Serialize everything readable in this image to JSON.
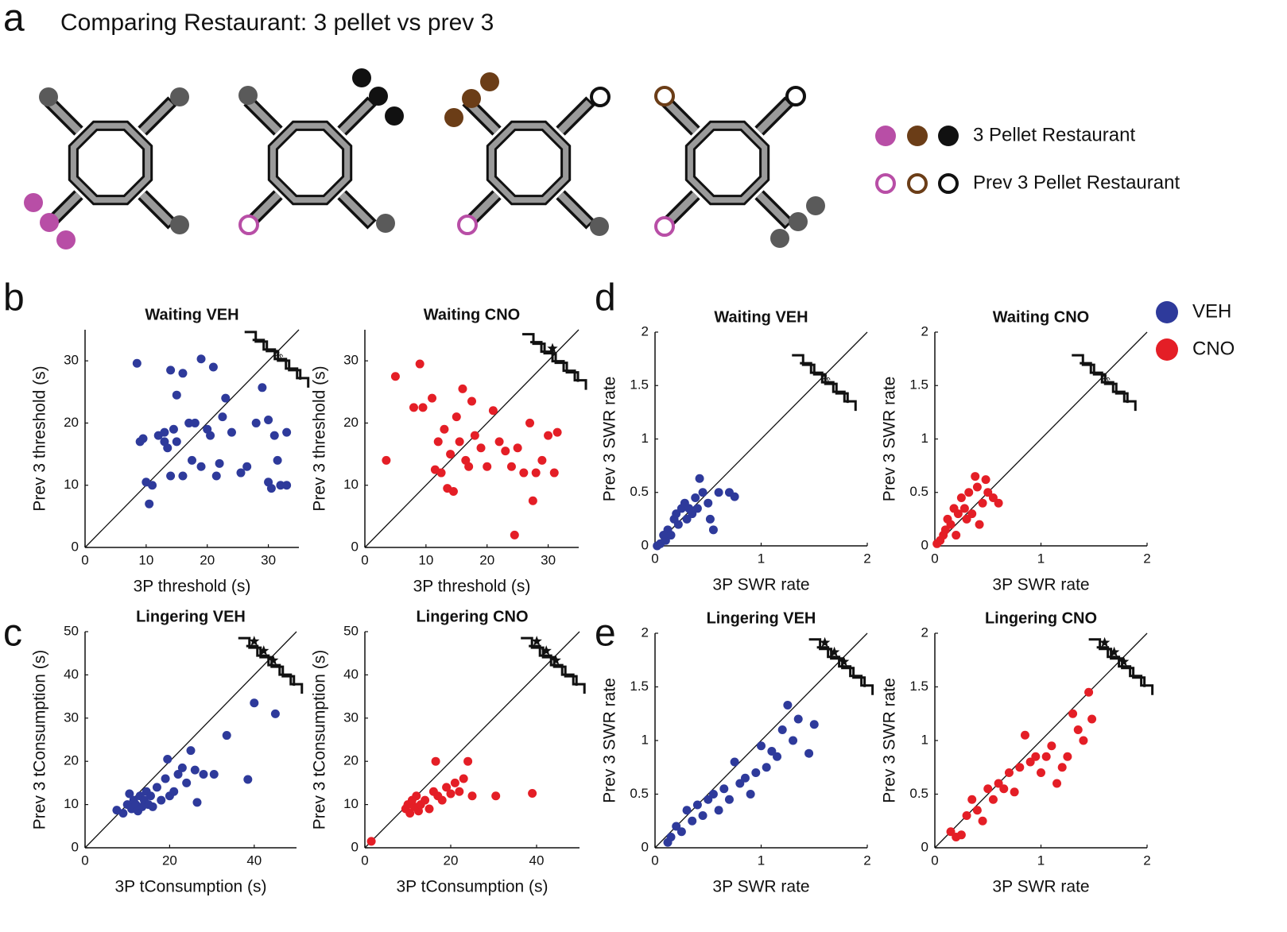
{
  "figure": {
    "title": "Comparing Restaurant: 3 pellet vs prev 3",
    "panel_labels": [
      "a",
      "b",
      "c",
      "d",
      "e"
    ],
    "restaurant_legend": [
      "3 Pellet Restaurant",
      "Prev 3 Pellet Restaurant"
    ],
    "legend": [
      {
        "name": "VEH",
        "color": "#2e3a9b"
      },
      {
        "name": "CNO",
        "color": "#e41e26"
      }
    ]
  },
  "chart_data": [
    {
      "type": "scatter",
      "title": "Waiting VEH",
      "xlabel": "3P threshold (s)",
      "ylabel": "Prev 3 threshold (s)",
      "xlim": [
        0,
        35
      ],
      "ylim": [
        0,
        35
      ],
      "xticks": [
        0,
        10,
        20,
        30
      ],
      "yticks": [
        0,
        10,
        20,
        30
      ],
      "annotation": "ns",
      "x": [
        8.5,
        9,
        9.5,
        10,
        10.5,
        11,
        12,
        13,
        13,
        13.5,
        14,
        14,
        14.5,
        15,
        15,
        16,
        16,
        17,
        17.5,
        18,
        19,
        19,
        20,
        20.5,
        21,
        21.5,
        22,
        22.5,
        23,
        24,
        25.5,
        26.5,
        28,
        29,
        30,
        30,
        30.5,
        31,
        31.5,
        32,
        33,
        33
      ],
      "series": [
        {
          "color": "#2e3a9b",
          "values": [
            29.6,
            17,
            17.5,
            10.5,
            7,
            10,
            18,
            18.5,
            17,
            16,
            28.5,
            11.5,
            19,
            17,
            24.5,
            28,
            11.5,
            20,
            14,
            20,
            30.3,
            13,
            19,
            18,
            29,
            11.5,
            13.5,
            21,
            24,
            18.5,
            12,
            13,
            20,
            25.7,
            20.5,
            10.5,
            9.5,
            18,
            14,
            10,
            18.5,
            10
          ]
        }
      ]
    },
    {
      "type": "scatter",
      "title": "Waiting CNO",
      "xlabel": "3P threshold (s)",
      "ylabel": "Prev 3 threshold (s)",
      "xlim": [
        0,
        35
      ],
      "ylim": [
        0,
        35
      ],
      "xticks": [
        0,
        10,
        20,
        30
      ],
      "yticks": [
        0,
        10,
        20,
        30
      ],
      "x": [
        3.5,
        5,
        8,
        9,
        9.5,
        11,
        11.5,
        12,
        12.5,
        13,
        13.5,
        14,
        14.5,
        15,
        15.5,
        16,
        16.5,
        17,
        17.5,
        18,
        19,
        20,
        21,
        22,
        23,
        24,
        24.5,
        25,
        26,
        27,
        27.5,
        28,
        29,
        30,
        31,
        31.5
      ],
      "series": [
        {
          "color": "#e41e26",
          "values": [
            14,
            27.5,
            22.5,
            29.5,
            22.5,
            24,
            12.5,
            17,
            12,
            19,
            9.5,
            15,
            9,
            21,
            17,
            25.5,
            14,
            13,
            23.5,
            18,
            16,
            13,
            22,
            17,
            15.5,
            13,
            2,
            16,
            12,
            20,
            7.5,
            12,
            14,
            18,
            12,
            18.5
          ]
        }
      ]
    },
    {
      "type": "scatter",
      "title": "Lingering VEH",
      "xlabel": "3P tConsumption (s)",
      "ylabel": "Prev 3 tConsumption (s)",
      "xlim": [
        0,
        50
      ],
      "ylim": [
        0,
        50
      ],
      "xticks": [
        0,
        20,
        40
      ],
      "yticks": [
        0,
        10,
        20,
        30,
        40,
        50
      ],
      "x": [
        7.5,
        9,
        10,
        10.5,
        11,
        11.5,
        12,
        12.5,
        13,
        13.5,
        14,
        14.5,
        15,
        15.5,
        16,
        17,
        18,
        19,
        19.5,
        20,
        21,
        22,
        23,
        24,
        25,
        26,
        26.5,
        28,
        30.5,
        33.5,
        38.5,
        40,
        45
      ],
      "series": [
        {
          "color": "#2e3a9b",
          "values": [
            8.7,
            8,
            10,
            12.5,
            9,
            11,
            10,
            8.5,
            12,
            9.5,
            11,
            13,
            10,
            12,
            9.5,
            14,
            11,
            16,
            20.5,
            12,
            13,
            17,
            18.5,
            15,
            22.5,
            18,
            10.5,
            17,
            17,
            26,
            15.8,
            33.5,
            31
          ]
        }
      ]
    },
    {
      "type": "scatter",
      "title": "Lingering CNO",
      "xlabel": "3P tConsumption (s)",
      "ylabel": "Prev 3 tConsumption (s)",
      "xlim": [
        0,
        50
      ],
      "ylim": [
        0,
        50
      ],
      "xticks": [
        0,
        20,
        40
      ],
      "yticks": [
        0,
        10,
        20,
        30,
        40,
        50
      ],
      "x": [
        1.5,
        9.5,
        10,
        10.5,
        11,
        11.5,
        12,
        12.5,
        13,
        14,
        15,
        16,
        16.5,
        17,
        18,
        19,
        20,
        21,
        22,
        23,
        24,
        25,
        30.5,
        39
      ],
      "series": [
        {
          "color": "#e41e26",
          "values": [
            1.5,
            9,
            10,
            8,
            11,
            9.5,
            12,
            8.5,
            10,
            11,
            9,
            13,
            20,
            12,
            11,
            14,
            12.5,
            15,
            13,
            16,
            20,
            12,
            12,
            12.6
          ]
        }
      ]
    },
    {
      "type": "scatter",
      "title": "Waiting VEH",
      "xlabel": "3P SWR rate",
      "ylabel": "Prev 3 SWR rate",
      "xlim": [
        0,
        2
      ],
      "ylim": [
        0,
        2
      ],
      "xticks": [
        0,
        1,
        2
      ],
      "yticks": [
        0,
        0.5,
        1,
        1.5,
        2
      ],
      "annotation": "ns",
      "x": [
        0.02,
        0.05,
        0.08,
        0.1,
        0.12,
        0.15,
        0.18,
        0.2,
        0.22,
        0.25,
        0.28,
        0.3,
        0.32,
        0.35,
        0.38,
        0.4,
        0.42,
        0.45,
        0.5,
        0.52,
        0.55,
        0.6,
        0.7,
        0.75
      ],
      "series": [
        {
          "color": "#2e3a9b",
          "values": [
            0,
            0.02,
            0.1,
            0.05,
            0.15,
            0.1,
            0.25,
            0.3,
            0.2,
            0.35,
            0.4,
            0.25,
            0.35,
            0.3,
            0.45,
            0.35,
            0.63,
            0.5,
            0.4,
            0.25,
            0.15,
            0.5,
            0.5,
            0.46
          ]
        }
      ]
    },
    {
      "type": "scatter",
      "title": "Waiting CNO",
      "xlabel": "3P SWR rate",
      "ylabel": "Prev 3 SWR rate",
      "xlim": [
        0,
        2
      ],
      "ylim": [
        0,
        2
      ],
      "xticks": [
        0,
        1,
        2
      ],
      "yticks": [
        0,
        0.5,
        1,
        1.5,
        2
      ],
      "annotation": "ns",
      "x": [
        0.02,
        0.05,
        0.08,
        0.1,
        0.12,
        0.15,
        0.18,
        0.2,
        0.22,
        0.25,
        0.28,
        0.3,
        0.32,
        0.35,
        0.38,
        0.4,
        0.42,
        0.45,
        0.48,
        0.5,
        0.55,
        0.6
      ],
      "series": [
        {
          "color": "#e41e26",
          "values": [
            0.02,
            0.05,
            0.1,
            0.15,
            0.25,
            0.2,
            0.35,
            0.1,
            0.3,
            0.45,
            0.35,
            0.25,
            0.5,
            0.3,
            0.65,
            0.55,
            0.2,
            0.4,
            0.62,
            0.5,
            0.45,
            0.4
          ]
        }
      ]
    },
    {
      "type": "scatter",
      "title": "Lingering VEH",
      "xlabel": "3P SWR rate",
      "ylabel": "Prev 3 SWR rate",
      "xlim": [
        0,
        2
      ],
      "ylim": [
        0,
        2
      ],
      "xticks": [
        0,
        1,
        2
      ],
      "yticks": [
        0,
        0.5,
        1,
        1.5,
        2
      ],
      "x": [
        0.12,
        0.15,
        0.2,
        0.25,
        0.3,
        0.35,
        0.4,
        0.45,
        0.5,
        0.55,
        0.6,
        0.65,
        0.7,
        0.75,
        0.8,
        0.85,
        0.9,
        0.95,
        1.0,
        1.05,
        1.1,
        1.15,
        1.2,
        1.25,
        1.3,
        1.35,
        1.45,
        1.5
      ],
      "series": [
        {
          "color": "#2e3a9b",
          "values": [
            0.05,
            0.1,
            0.2,
            0.15,
            0.35,
            0.25,
            0.4,
            0.3,
            0.45,
            0.5,
            0.35,
            0.55,
            0.45,
            0.8,
            0.6,
            0.65,
            0.5,
            0.7,
            0.95,
            0.75,
            0.9,
            0.85,
            1.1,
            1.33,
            1.0,
            1.2,
            0.88,
            1.15
          ]
        }
      ]
    },
    {
      "type": "scatter",
      "title": "Lingering CNO",
      "xlabel": "3P SWR rate",
      "ylabel": "Prev 3 SWR rate",
      "xlim": [
        0,
        2
      ],
      "ylim": [
        0,
        2
      ],
      "xticks": [
        0,
        1,
        2
      ],
      "yticks": [
        0,
        0.5,
        1,
        1.5,
        2
      ],
      "x": [
        0.15,
        0.2,
        0.25,
        0.3,
        0.35,
        0.4,
        0.45,
        0.5,
        0.55,
        0.6,
        0.65,
        0.7,
        0.75,
        0.8,
        0.85,
        0.9,
        0.95,
        1.0,
        1.05,
        1.1,
        1.15,
        1.2,
        1.25,
        1.3,
        1.35,
        1.4,
        1.45,
        1.48
      ],
      "series": [
        {
          "color": "#e41e26",
          "values": [
            0.15,
            0.1,
            0.12,
            0.3,
            0.45,
            0.35,
            0.25,
            0.55,
            0.45,
            0.6,
            0.55,
            0.7,
            0.52,
            0.75,
            1.05,
            0.8,
            0.85,
            0.7,
            0.85,
            0.95,
            0.6,
            0.75,
            0.85,
            1.25,
            1.1,
            1.0,
            1.45,
            1.2
          ]
        }
      ]
    }
  ]
}
